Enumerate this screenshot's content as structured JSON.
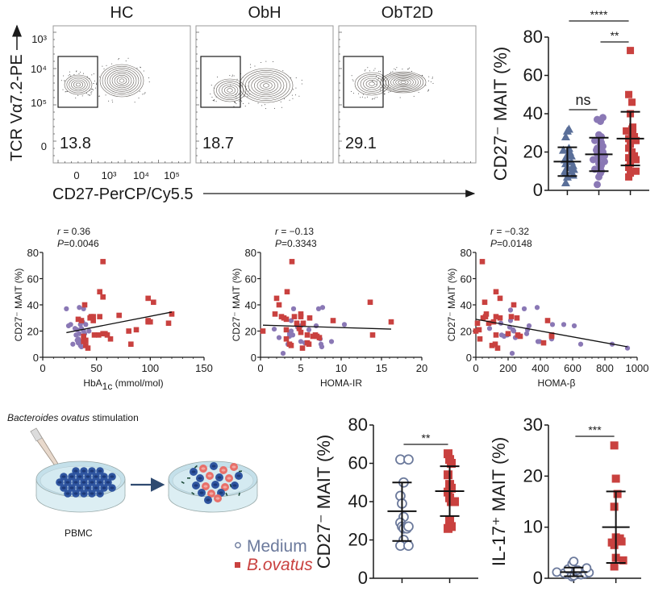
{
  "colors": {
    "hc": "#5a6f99",
    "obh": "#8a78b5",
    "obt2d": "#c9413f",
    "medium": "#6c7a9c",
    "bovatus": "#c9413f",
    "axis": "#1a1a1a",
    "cell_blue": "#2f55a0",
    "cell_pink": "#e8706a",
    "dish_fill": "#cfe6ee"
  },
  "flow": {
    "panels": [
      {
        "title": "HC",
        "gate_value": "13.8"
      },
      {
        "title": "ObH",
        "gate_value": "18.7"
      },
      {
        "title": "ObT2D",
        "gate_value": "29.1"
      }
    ],
    "y_label": "TCR Vα7.2-PE",
    "y_ticks": [
      "10³",
      "10⁴",
      "10⁵",
      "0"
    ],
    "x_ticks": [
      "0",
      "10³",
      "10⁴",
      "10⁵"
    ],
    "x_label": "CD27-PerCP/Cy5.5"
  },
  "chart_data": [
    {
      "id": "group-dotplot",
      "type": "scatter",
      "title": "",
      "ylabel": "CD27⁻ MAIT (%)",
      "xlabel": "",
      "ylim": [
        0,
        80
      ],
      "yticks": [
        0,
        20,
        40,
        60,
        80
      ],
      "categories": [
        "HC",
        "ObH",
        "ObT2D"
      ],
      "series": [
        {
          "name": "HC",
          "marker": "triangle",
          "mean": 15,
          "sd_low": 7.5,
          "sd_high": 22.5,
          "values": [
            4,
            7,
            8,
            9,
            10,
            10,
            11,
            12,
            13,
            14,
            15,
            16,
            17,
            18,
            19,
            20,
            21,
            22,
            28,
            31,
            32
          ]
        },
        {
          "name": "ObH",
          "marker": "circle",
          "mean": 18.8,
          "sd_low": 10,
          "sd_high": 27.5,
          "values": [
            3,
            7,
            9,
            10,
            11,
            12,
            13,
            14,
            15,
            16,
            17,
            18,
            19,
            20,
            21,
            22,
            23,
            24,
            25,
            26,
            27,
            28,
            29,
            36,
            37,
            38
          ]
        },
        {
          "name": "ObT2D",
          "marker": "square",
          "mean": 27,
          "sd_low": 13,
          "sd_high": 41,
          "values": [
            7,
            9,
            10,
            12,
            14,
            16,
            17,
            18,
            20,
            22,
            24,
            26,
            27,
            28,
            29,
            30,
            31,
            32,
            33,
            40,
            46,
            50,
            73
          ]
        }
      ],
      "significance": [
        {
          "from": 0,
          "to": 2,
          "label": "****"
        },
        {
          "from": 1,
          "to": 2,
          "label": "**"
        },
        {
          "from": 0,
          "to": 1,
          "label": "ns"
        }
      ]
    },
    {
      "id": "corr-hba1c",
      "type": "scatter",
      "annotation_r": "r = 0.36",
      "annotation_p": "P=0.0046",
      "ylabel": "CD27⁻ MAIT (%)",
      "xlabel": "HbA1c (mmol/mol)",
      "xlim": [
        0,
        150
      ],
      "ylim": [
        0,
        80
      ],
      "xticks": [
        0,
        50,
        100,
        150
      ],
      "yticks": [
        0,
        20,
        40,
        60,
        80
      ],
      "fit_line": [
        [
          22,
          18.8
        ],
        [
          120,
          34.5
        ]
      ],
      "series": [
        {
          "name": "ObH",
          "marker": "circle",
          "points": [
            [
              22,
              37
            ],
            [
              24,
              24
            ],
            [
              26,
              25
            ],
            [
              28,
              10
            ],
            [
              30,
              22
            ],
            [
              31,
              17
            ],
            [
              32,
              21
            ],
            [
              32,
              13
            ],
            [
              33,
              11
            ],
            [
              34,
              38
            ],
            [
              34,
              18
            ],
            [
              35,
              9
            ],
            [
              35,
              25
            ],
            [
              36,
              22
            ],
            [
              36,
              8
            ],
            [
              37,
              27
            ],
            [
              38,
              37
            ],
            [
              38,
              20
            ],
            [
              39,
              18
            ],
            [
              40,
              25
            ],
            [
              43,
              20
            ],
            [
              33,
              14
            ],
            [
              36,
              12
            ]
          ]
        },
        {
          "name": "ObT2D",
          "marker": "square",
          "points": [
            [
              33,
              29
            ],
            [
              36,
              28
            ],
            [
              38,
              12
            ],
            [
              38,
              16
            ],
            [
              38,
              14
            ],
            [
              39,
              40
            ],
            [
              40,
              13
            ],
            [
              40,
              9
            ],
            [
              42,
              7
            ],
            [
              44,
              30
            ],
            [
              45,
              31
            ],
            [
              47,
              28
            ],
            [
              47,
              31
            ],
            [
              48,
              17
            ],
            [
              52,
              17
            ],
            [
              53,
              31
            ],
            [
              53,
              50
            ],
            [
              56,
              46
            ],
            [
              56,
              73
            ],
            [
              56,
              18
            ],
            [
              58,
              18
            ],
            [
              60,
              17
            ],
            [
              63,
              14
            ],
            [
              71,
              32
            ],
            [
              80,
              20
            ],
            [
              82,
              10
            ],
            [
              87,
              21
            ],
            [
              98,
              45
            ],
            [
              98,
              28
            ],
            [
              98,
              27
            ],
            [
              100,
              27
            ],
            [
              103,
              42
            ],
            [
              117,
              26
            ],
            [
              120,
              33
            ]
          ]
        }
      ]
    },
    {
      "id": "corr-homa-ir",
      "type": "scatter",
      "annotation_r": "r = −0.13",
      "annotation_p": "P=0.3343",
      "ylabel": "CD27⁻ MAIT (%)",
      "xlabel": "HOMA-IR",
      "xlim": [
        0,
        20
      ],
      "ylim": [
        0,
        80
      ],
      "xticks": [
        0,
        5,
        10,
        15,
        20
      ],
      "yticks": [
        0,
        20,
        40,
        60,
        80
      ],
      "fit_line": [
        [
          0.3,
          24.5
        ],
        [
          16.2,
          21.5
        ]
      ],
      "series": [
        {
          "name": "ObH",
          "marker": "circle",
          "points": [
            [
              1.7,
              21.5
            ],
            [
              2.3,
              15
            ],
            [
              2.8,
              3
            ],
            [
              3.4,
              10
            ],
            [
              3.6,
              16
            ],
            [
              3.8,
              20
            ],
            [
              3.8,
              28
            ],
            [
              4,
              17
            ],
            [
              4.1,
              37
            ],
            [
              4.6,
              23
            ],
            [
              5,
              12
            ],
            [
              5,
              24
            ],
            [
              5.5,
              11
            ],
            [
              6,
              21
            ],
            [
              6.9,
              24
            ],
            [
              7.2,
              37
            ],
            [
              7.4,
              14
            ],
            [
              7.5,
              10
            ],
            [
              7.7,
              38
            ],
            [
              7.6,
              8
            ],
            [
              8.8,
              12
            ],
            [
              10.4,
              25
            ],
            [
              3.6,
              18
            ]
          ]
        },
        {
          "name": "ObT2D",
          "marker": "square",
          "points": [
            [
              0.3,
              20
            ],
            [
              1.8,
              33
            ],
            [
              2,
              45
            ],
            [
              2.3,
              40
            ],
            [
              2.6,
              31
            ],
            [
              2.9,
              30
            ],
            [
              3.2,
              29
            ],
            [
              3.3,
              50
            ],
            [
              3.2,
              21
            ],
            [
              3.2,
              14
            ],
            [
              3.6,
              10
            ],
            [
              3.8,
              9
            ],
            [
              3.9,
              73
            ],
            [
              4.2,
              31
            ],
            [
              4.5,
              26
            ],
            [
              4.8,
              22
            ],
            [
              5,
              33
            ],
            [
              5,
              31
            ],
            [
              5,
              19
            ],
            [
              5.2,
              7
            ],
            [
              5.3,
              26
            ],
            [
              5.8,
              17
            ],
            [
              5.8,
              11
            ],
            [
              6,
              10
            ],
            [
              6.1,
              30
            ],
            [
              6.5,
              16
            ],
            [
              6.8,
              17
            ],
            [
              7,
              16
            ],
            [
              7.3,
              15
            ],
            [
              9,
              28
            ],
            [
              13.6,
              42
            ],
            [
              13.9,
              17
            ],
            [
              16.2,
              27
            ]
          ]
        }
      ]
    },
    {
      "id": "corr-homa-beta",
      "type": "scatter",
      "annotation_r": "r = −0.32",
      "annotation_p": "P=0.0148",
      "ylabel": "CD27⁻ MAIT (%)",
      "xlabel": "HOMA-β",
      "xlim": [
        0,
        1000
      ],
      "ylim": [
        0,
        80
      ],
      "xticks": [
        0,
        200,
        400,
        600,
        800,
        1000
      ],
      "yticks": [
        0,
        20,
        40,
        60,
        80
      ],
      "fit_line": [
        [
          0,
          29
        ],
        [
          940,
          8
        ]
      ],
      "series": [
        {
          "name": "ObH",
          "marker": "circle",
          "points": [
            [
              85,
              22
            ],
            [
              155,
              26
            ],
            [
              160,
              17
            ],
            [
              175,
              16
            ],
            [
              195,
              17
            ],
            [
              210,
              23
            ],
            [
              215,
              36
            ],
            [
              215,
              28
            ],
            [
              225,
              3
            ],
            [
              230,
              21
            ],
            [
              235,
              20
            ],
            [
              245,
              15
            ],
            [
              300,
              37
            ],
            [
              315,
              18
            ],
            [
              320,
              21
            ],
            [
              330,
              24
            ],
            [
              380,
              38
            ],
            [
              385,
              12
            ],
            [
              395,
              12
            ],
            [
              470,
              14
            ],
            [
              475,
              25
            ],
            [
              545,
              25
            ],
            [
              610,
              24
            ],
            [
              650,
              10
            ],
            [
              845,
              10
            ],
            [
              940,
              7
            ]
          ]
        },
        {
          "name": "ObT2D",
          "marker": "square",
          "points": [
            [
              0,
              20
            ],
            [
              10,
              26
            ],
            [
              20,
              21
            ],
            [
              25,
              14
            ],
            [
              40,
              73
            ],
            [
              45,
              30
            ],
            [
              55,
              42
            ],
            [
              60,
              31
            ],
            [
              65,
              33
            ],
            [
              80,
              26
            ],
            [
              100,
              9
            ],
            [
              110,
              27
            ],
            [
              120,
              10
            ],
            [
              125,
              50
            ],
            [
              125,
              31
            ],
            [
              125,
              17
            ],
            [
              135,
              7
            ],
            [
              150,
              45
            ],
            [
              150,
              30
            ],
            [
              200,
              18
            ],
            [
              220,
              31
            ],
            [
              235,
              40
            ],
            [
              255,
              30
            ],
            [
              260,
              17
            ],
            [
              275,
              16
            ],
            [
              420,
              11
            ],
            [
              445,
              28
            ],
            [
              470,
              17
            ],
            [
              470,
              16
            ]
          ]
        }
      ]
    },
    {
      "id": "stim-cd27",
      "type": "scatter",
      "ylabel": "CD27⁻ MAIT (%)",
      "xlabel": "",
      "ylim": [
        0,
        80
      ],
      "yticks": [
        0,
        20,
        40,
        60,
        80
      ],
      "categories": [
        "Medium",
        "B.ovatus"
      ],
      "series": [
        {
          "name": "Medium",
          "marker": "open-circle",
          "mean": 35,
          "sd_low": 19.5,
          "sd_high": 50,
          "values": [
            62,
            62,
            50,
            43,
            39,
            32,
            29,
            27,
            26,
            26,
            27,
            20,
            17,
            17
          ]
        },
        {
          "name": "B.ovatus",
          "marker": "square",
          "mean": 45.5,
          "sd_low": 32.5,
          "sd_high": 58.5,
          "values": [
            65,
            62,
            60,
            54,
            49,
            47,
            45,
            42,
            40,
            40,
            30,
            27,
            26
          ]
        }
      ],
      "significance": [
        {
          "from": 0,
          "to": 1,
          "label": "**"
        }
      ]
    },
    {
      "id": "stim-il17",
      "type": "scatter",
      "ylabel": "IL-17⁺ MAIT (%)",
      "xlabel": "",
      "ylim": [
        0,
        30
      ],
      "yticks": [
        0,
        10,
        20,
        30
      ],
      "categories": [
        "Medium",
        "B.ovatus"
      ],
      "series": [
        {
          "name": "Medium",
          "marker": "open-circle",
          "mean": 1.2,
          "sd_low": 0.4,
          "sd_high": 2.1,
          "values": [
            0.3,
            0.5,
            0.7,
            0.8,
            0.9,
            1.0,
            1.1,
            1.2,
            1.4,
            1.6,
            1.8,
            2.0,
            2.8,
            3.3
          ]
        },
        {
          "name": "B.ovatus",
          "marker": "square",
          "mean": 10,
          "sd_low": 3,
          "sd_high": 17,
          "values": [
            26,
            19.5,
            16.5,
            14,
            8,
            7.5,
            7.8,
            7.2,
            7,
            6.5,
            4,
            3.5,
            2.3
          ]
        }
      ],
      "significance": [
        {
          "from": 0,
          "to": 1,
          "label": "***"
        }
      ]
    }
  ],
  "schematic": {
    "title_italic": "Bacteroides ovatus",
    "title_rest": " stimulation",
    "dish_label": "PBMC"
  },
  "legend": {
    "items": [
      {
        "label": "Medium",
        "marker": "open-circle"
      },
      {
        "label": "B.ovatus",
        "marker": "square"
      }
    ]
  }
}
